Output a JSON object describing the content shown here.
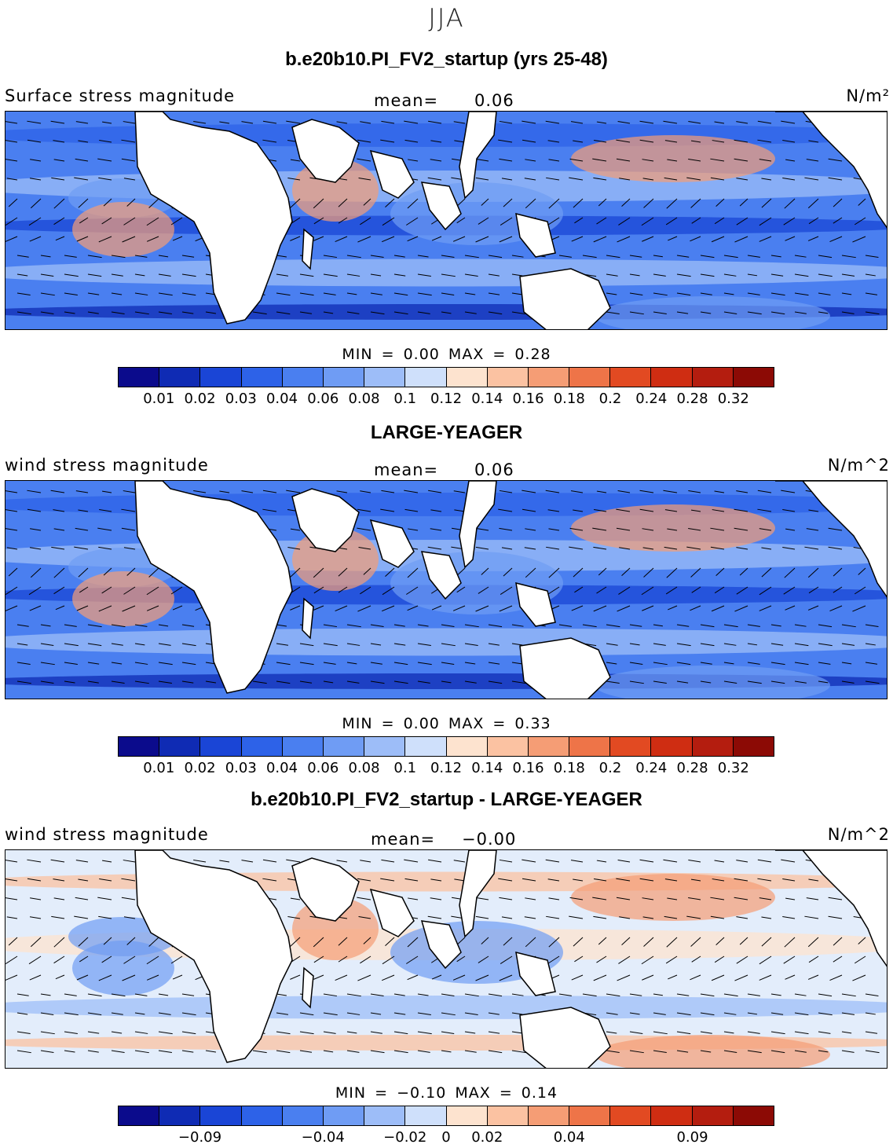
{
  "figure": {
    "season": "JJA"
  },
  "colorscale": [
    "#0b0b8c",
    "#0f2bb4",
    "#1a45d6",
    "#2d62e8",
    "#4a7ff0",
    "#6f9cf4",
    "#9dbdf8",
    "#cfe0fb",
    "#fde3cf",
    "#fbc2a2",
    "#f59d75",
    "#ee7448",
    "#e24a22",
    "#cf2d12",
    "#b41d0f",
    "#8c0a05"
  ],
  "panels": [
    {
      "title": "b.e20b10.PI_FV2_startup (yrs 25-48)",
      "variable": "Surface stress magnitude",
      "mean_label": "mean=",
      "mean_value": "0.06",
      "units": "N/m²",
      "min_label": "MIN =",
      "min_value": "0.00",
      "max_label": "MAX =",
      "max_value": "0.28",
      "colorbar_ticks": [
        "0.01",
        "0.02",
        "0.03",
        "0.04",
        "0.06",
        "0.08",
        "0.1",
        "0.12",
        "0.14",
        "0.16",
        "0.18",
        "0.2",
        "0.24",
        "0.28",
        "0.32"
      ]
    },
    {
      "title": "LARGE-YEAGER",
      "variable": "wind stress magnitude",
      "mean_label": "mean=",
      "mean_value": "0.06",
      "units": "N/m^2",
      "min_label": "MIN =",
      "min_value": "0.00",
      "max_label": "MAX =",
      "max_value": "0.33",
      "colorbar_ticks": [
        "0.01",
        "0.02",
        "0.03",
        "0.04",
        "0.06",
        "0.08",
        "0.1",
        "0.12",
        "0.14",
        "0.16",
        "0.18",
        "0.2",
        "0.24",
        "0.28",
        "0.32"
      ]
    },
    {
      "title": "b.e20b10.PI_FV2_startup - LARGE-YEAGER",
      "variable": "wind stress magnitude",
      "mean_label": "mean=",
      "mean_value": "−0.00",
      "units": "N/m^2",
      "min_label": "MIN =",
      "min_value": "−0.10",
      "max_label": "MAX =",
      "max_value": "0.14",
      "colorbar_ticks": [
        "−0.09",
        "−0.04",
        "−0.02",
        "0",
        "0.02",
        "0.04",
        "0.09"
      ]
    }
  ]
}
